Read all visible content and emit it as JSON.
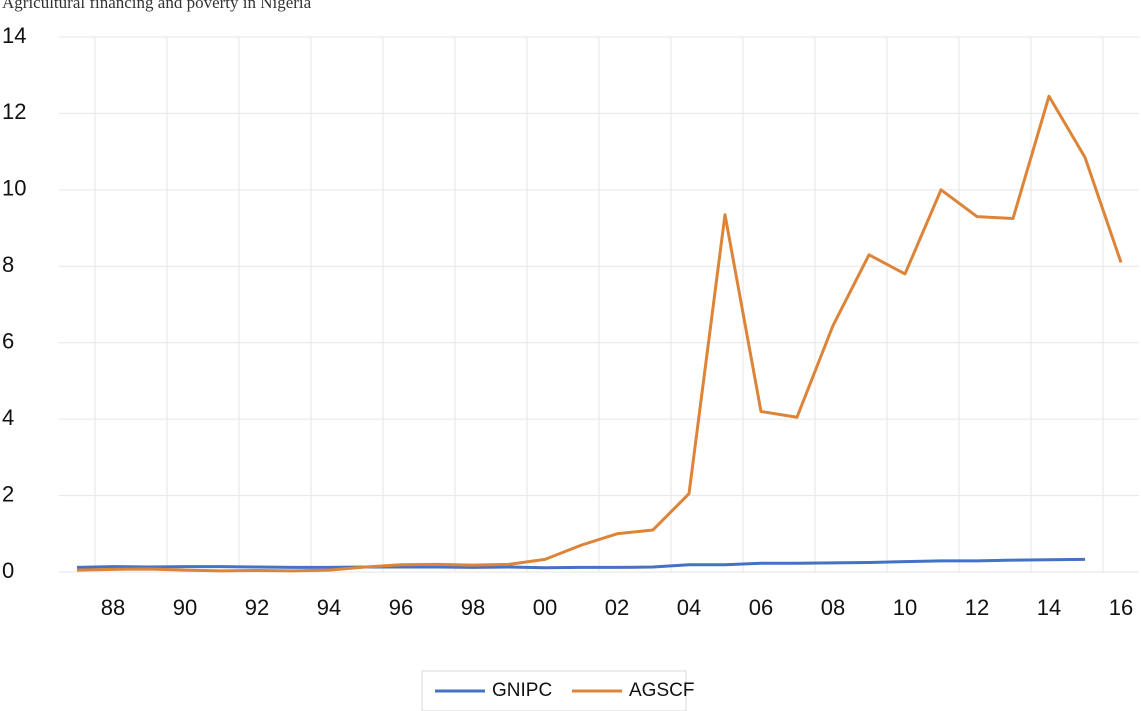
{
  "chart_data": {
    "type": "line",
    "title": "Agricultural financing and poverty in Nigeria",
    "categories": [
      null,
      "88",
      null,
      "90",
      null,
      "92",
      null,
      "94",
      null,
      "96",
      null,
      "98",
      null,
      "00",
      null,
      "02",
      null,
      "04",
      null,
      "06",
      null,
      "08",
      null,
      "10",
      null,
      "12",
      null,
      "14",
      null,
      "16"
    ],
    "series": [
      {
        "name": "GNIPC",
        "color": "#4472c4",
        "values": [
          0.12,
          0.14,
          0.13,
          0.14,
          0.14,
          0.13,
          0.12,
          0.12,
          0.13,
          0.13,
          0.13,
          0.12,
          0.13,
          0.11,
          0.12,
          0.12,
          0.13,
          0.19,
          0.19,
          0.23,
          0.23,
          0.24,
          0.25,
          0.27,
          0.29,
          0.29,
          0.31,
          0.32,
          0.33,
          null
        ]
      },
      {
        "name": "AGSCF",
        "color": "#dd8438",
        "values": [
          0.05,
          0.07,
          0.08,
          0.05,
          0.03,
          0.04,
          0.03,
          0.05,
          0.13,
          0.19,
          0.2,
          0.18,
          0.2,
          0.33,
          0.7,
          1.0,
          1.1,
          2.05,
          9.35,
          4.2,
          4.05,
          6.45,
          8.3,
          7.8,
          10.0,
          9.3,
          9.25,
          12.45,
          10.85,
          8.1
        ]
      }
    ],
    "ylim": [
      0,
      14
    ],
    "yticks": [
      0,
      2,
      4,
      6,
      8,
      10,
      12,
      14
    ],
    "grid": true,
    "legend": "bottom"
  }
}
